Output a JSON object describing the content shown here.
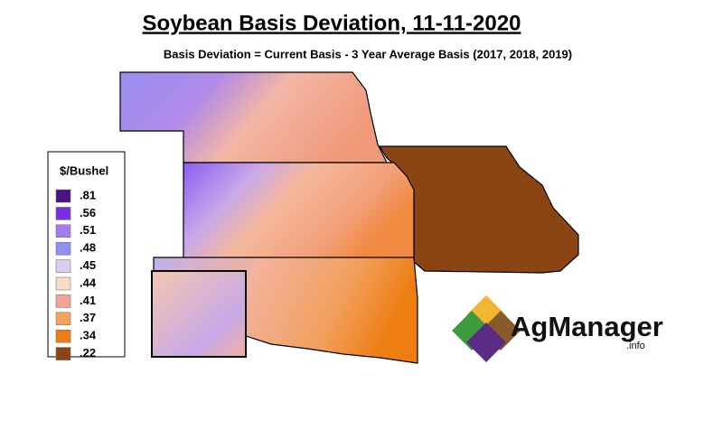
{
  "title": "Soybean Basis Deviation, 11-11-2020",
  "subtitle": "Basis Deviation = Current Basis - 3 Year Average Basis (2017, 2018, 2019)",
  "legend": {
    "title": "$/Bushel",
    "items": [
      {
        "label": ".81",
        "color": "#4a1486"
      },
      {
        "label": ".56",
        "color": "#7a2be6"
      },
      {
        "label": ".51",
        "color": "#a77bf0"
      },
      {
        "label": ".48",
        "color": "#9090f0"
      },
      {
        "label": ".45",
        "color": "#dccdf2"
      },
      {
        "label": ".44",
        "color": "#f7dcc8"
      },
      {
        "label": ".41",
        "color": "#f2a394"
      },
      {
        "label": ".37",
        "color": "#f5a35c"
      },
      {
        "label": ".34",
        "color": "#ee7d12"
      },
      {
        "label": ".22",
        "color": "#8b4513"
      }
    ]
  },
  "logo": {
    "name": "AgManager",
    "suffix": ".info"
  }
}
